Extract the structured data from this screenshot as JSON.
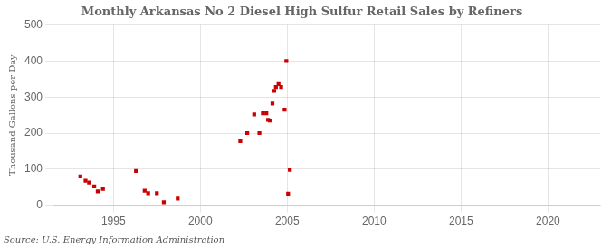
{
  "chart_data": {
    "type": "scatter",
    "title": "Monthly Arkansas No 2 Diesel High Sulfur Retail Sales by Refiners",
    "ylabel": "Thousand Gallons per Day",
    "annotation": "Source: U.S. Energy Information Administration",
    "x": [
      1993.1,
      1993.4,
      1993.6,
      1993.9,
      1994.1,
      1994.4,
      1996.3,
      1996.8,
      1997.0,
      1997.5,
      1997.9,
      1998.7,
      2002.3,
      2002.7,
      2003.1,
      2003.4,
      2003.6,
      2003.8,
      2003.9,
      2004.0,
      2004.15,
      2004.25,
      2004.35,
      2004.5,
      2004.65,
      2004.85,
      2004.95,
      2005.05,
      2005.15
    ],
    "values": [
      80,
      68,
      63,
      52,
      38,
      45,
      95,
      40,
      33,
      33,
      8,
      18,
      178,
      200,
      252,
      200,
      255,
      255,
      237,
      235,
      282,
      317,
      328,
      336,
      328,
      265,
      400,
      32,
      98
    ],
    "color": "#cc0000",
    "marker": "square",
    "xlim": [
      1991.5,
      2023
    ],
    "ylim": [
      0,
      500
    ],
    "xticks": [
      1995,
      2000,
      2005,
      2010,
      2015,
      2020
    ],
    "yticks": [
      0,
      100,
      200,
      300,
      400,
      500
    ],
    "grid": true
  }
}
